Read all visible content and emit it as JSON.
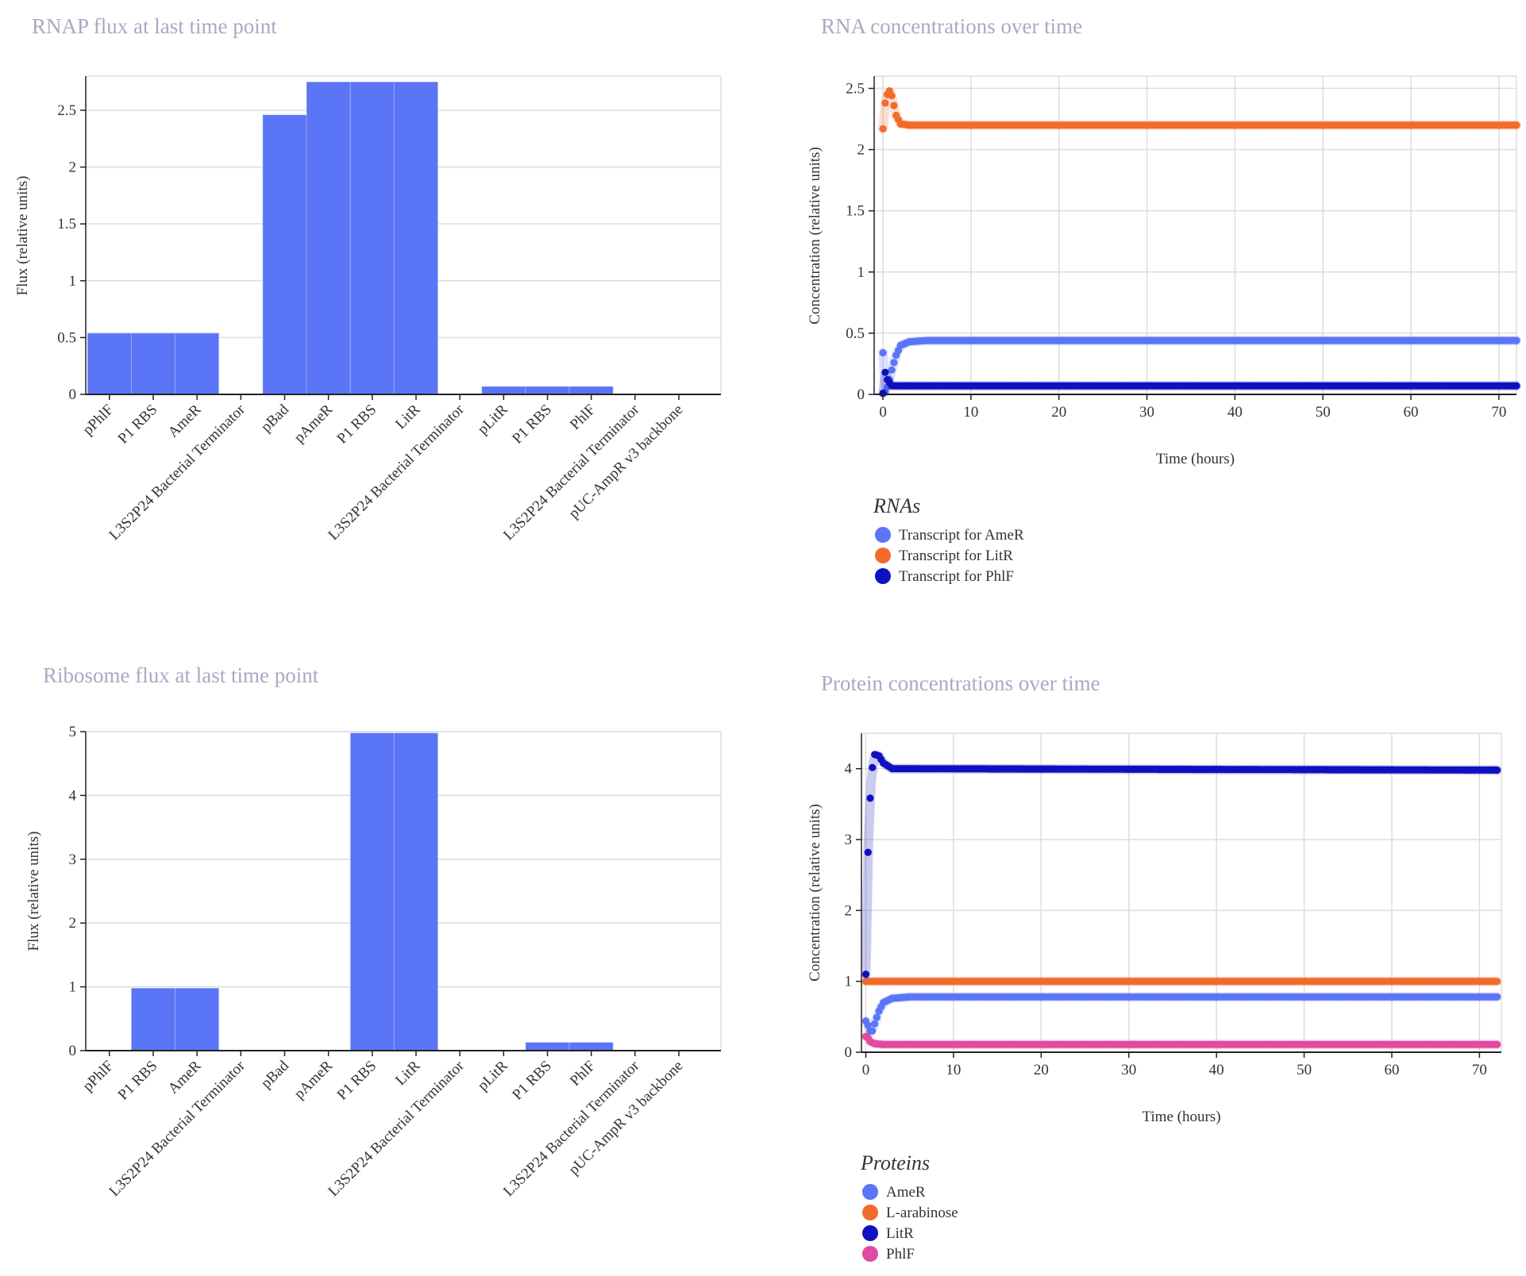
{
  "colors": {
    "bar": "#5b75f7",
    "grid": "#dddddd",
    "axis": "#222222",
    "title": "#a8aac4"
  },
  "chart_data": [
    {
      "id": "rnap",
      "type": "bar",
      "title": "RNAP flux at last time point",
      "ylabel": "Flux (relative units)",
      "xlabel": "",
      "categories": [
        "pPhlF",
        "P1 RBS",
        "AmeR",
        "L3S2P24 Bacterial Terminator",
        "pBad",
        "pAmeR",
        "P1 RBS",
        "LitR",
        "L3S2P24 Bacterial Terminator",
        "pLitR",
        "P1 RBS",
        "PhlF",
        "L3S2P24 Bacterial Terminator",
        "pUC-AmpR v3 backbone"
      ],
      "values": [
        0.54,
        0.54,
        0.54,
        0,
        2.46,
        2.75,
        2.75,
        2.75,
        0,
        0.07,
        0.07,
        0.07,
        0,
        0
      ],
      "yticks": [
        0,
        0.5,
        1,
        1.5,
        2,
        2.5
      ],
      "ylim": [
        0,
        2.8
      ],
      "grid": true
    },
    {
      "id": "ribo",
      "type": "bar",
      "title": "Ribosome flux at last time point",
      "ylabel": "Flux (relative units)",
      "xlabel": "",
      "categories": [
        "pPhlF",
        "P1 RBS",
        "AmeR",
        "L3S2P24 Bacterial Terminator",
        "pBad",
        "pAmeR",
        "P1 RBS",
        "LitR",
        "L3S2P24 Bacterial Terminator",
        "pLitR",
        "P1 RBS",
        "PhlF",
        "L3S2P24 Bacterial Terminator",
        "pUC-AmpR v3 backbone"
      ],
      "values": [
        0,
        0.98,
        0.98,
        0,
        0,
        0,
        4.98,
        4.98,
        0,
        0,
        0.13,
        0.13,
        0,
        0
      ],
      "yticks": [
        0,
        1,
        2,
        3,
        4,
        5
      ],
      "ylim": [
        0,
        5
      ],
      "grid": true
    },
    {
      "id": "rna",
      "type": "scatter",
      "title": "RNA concentrations over time",
      "xlabel": "Time (hours)",
      "ylabel": "Concentration (relative units)",
      "xlim": [
        -1,
        72
      ],
      "ylim": [
        0,
        2.6
      ],
      "xticks": [
        0,
        10,
        20,
        30,
        40,
        50,
        60,
        70
      ],
      "yticks": [
        0,
        0.5,
        1,
        1.5,
        2,
        2.5
      ],
      "grid": true,
      "legend_title": "RNAs",
      "legend_position": "bottom-left",
      "series": [
        {
          "name": "Transcript for AmeR",
          "color": "#5b75f7",
          "x": [
            0,
            0.25,
            0.5,
            0.75,
            1,
            1.5,
            2,
            3,
            5,
            72
          ],
          "y": [
            0.34,
            0.02,
            0.06,
            0.12,
            0.2,
            0.32,
            0.4,
            0.43,
            0.44,
            0.44
          ]
        },
        {
          "name": "Transcript for LitR",
          "color": "#f26b2a",
          "x": [
            0,
            0.25,
            0.5,
            0.75,
            1,
            1.25,
            1.5,
            2,
            3,
            72
          ],
          "y": [
            2.17,
            2.38,
            2.45,
            2.48,
            2.44,
            2.36,
            2.28,
            2.21,
            2.2,
            2.2
          ]
        },
        {
          "name": "Transcript for PhlF",
          "color": "#1010c0",
          "x": [
            0,
            0.25,
            0.5,
            1,
            72
          ],
          "y": [
            0.01,
            0.18,
            0.12,
            0.07,
            0.07
          ]
        }
      ]
    },
    {
      "id": "prot",
      "type": "scatter",
      "title": "Protein concentrations over time",
      "xlabel": "Time (hours)",
      "ylabel": "Concentration (relative units)",
      "xlim": [
        -0.5,
        72.5
      ],
      "ylim": [
        0,
        4.5
      ],
      "xticks": [
        0,
        10,
        20,
        30,
        40,
        50,
        60,
        70
      ],
      "yticks": [
        0,
        1,
        2,
        3,
        4
      ],
      "grid": true,
      "legend_title": "Proteins",
      "legend_position": "bottom-left",
      "series": [
        {
          "name": "AmeR",
          "color": "#5b75f7",
          "x": [
            0,
            0.25,
            0.5,
            0.75,
            1,
            1.5,
            2,
            3,
            5,
            72
          ],
          "y": [
            0.44,
            0.38,
            0.3,
            0.3,
            0.4,
            0.58,
            0.7,
            0.76,
            0.78,
            0.78
          ]
        },
        {
          "name": "L-arabinose",
          "color": "#f26b2a",
          "x": [
            0,
            72
          ],
          "y": [
            1.0,
            1.0
          ]
        },
        {
          "name": "LitR",
          "color": "#1010c0",
          "x": [
            0,
            0.1,
            0.25,
            0.4,
            0.55,
            0.7,
            1,
            1.5,
            2,
            3,
            72
          ],
          "y": [
            1.1,
            2.1,
            2.82,
            3.33,
            3.71,
            3.98,
            4.2,
            4.18,
            4.08,
            4.0,
            3.98
          ]
        },
        {
          "name": "PhlF",
          "color": "#e04aa0",
          "x": [
            0,
            0.25,
            0.5,
            1,
            2,
            72
          ],
          "y": [
            0.22,
            0.2,
            0.15,
            0.12,
            0.11,
            0.11
          ]
        }
      ]
    }
  ]
}
